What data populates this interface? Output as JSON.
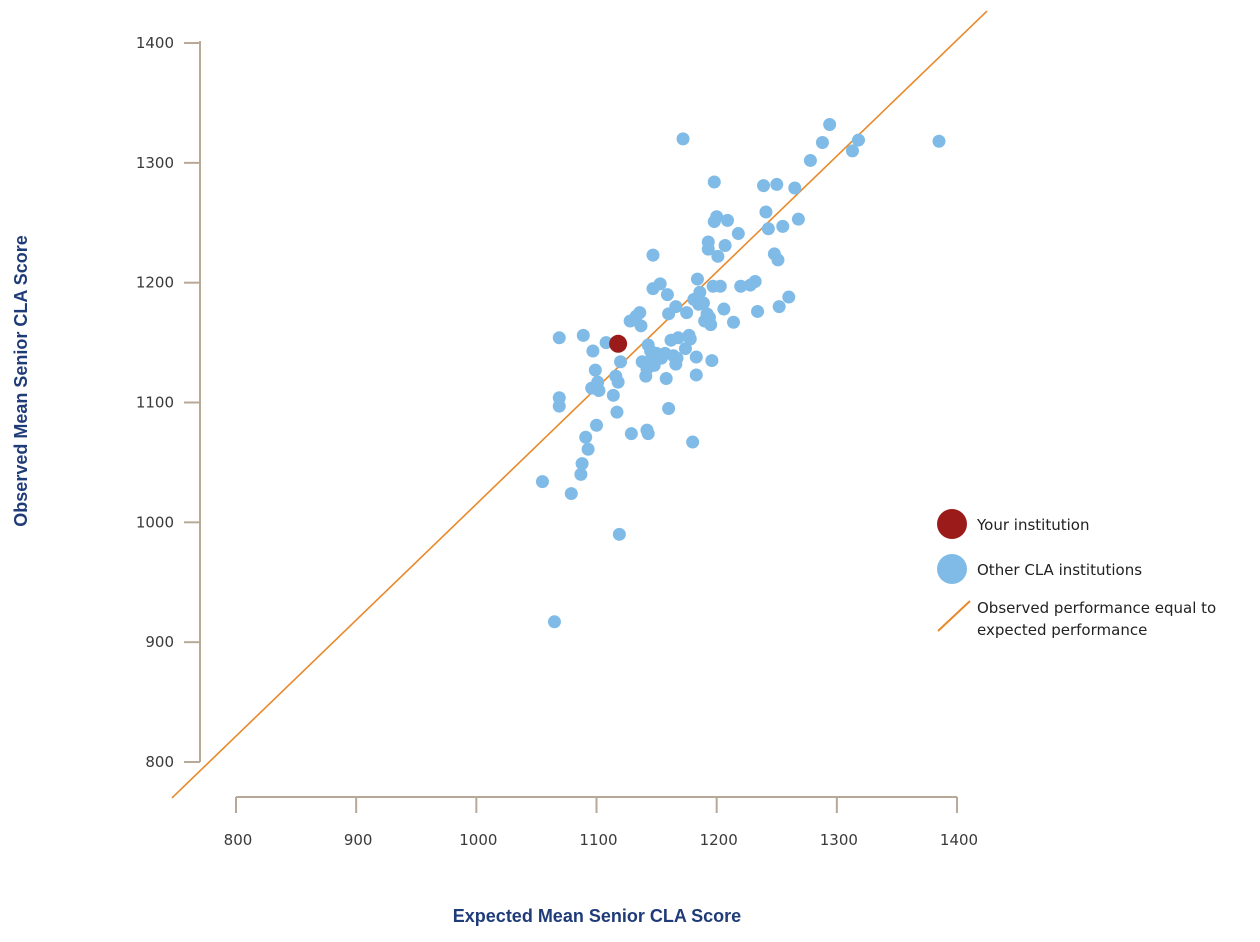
{
  "chart_data": {
    "type": "scatter",
    "xlabel": "Expected Mean Senior CLA Score",
    "ylabel": "Observed Mean Senior CLA Score",
    "xlim": [
      800,
      1400
    ],
    "ylim": [
      800,
      1400
    ],
    "x_ticks": [
      800,
      900,
      1000,
      1100,
      1200,
      1300,
      1400
    ],
    "y_ticks": [
      800,
      900,
      1000,
      1100,
      1200,
      1300,
      1400
    ],
    "grid": false,
    "legend_position": "right",
    "colors": {
      "your": "#9b1b1b",
      "other": "#7fbbe6",
      "line": "#e8892a",
      "axis": "#b8a898"
    },
    "reference_line": {
      "name": "Observed performance equal to expected performance",
      "line1": "Observed performance equal to",
      "line2": "expected performance",
      "from": [
        770,
        770
      ],
      "to": [
        1400,
        1400
      ]
    },
    "series": [
      {
        "name": "Your institution",
        "points": [
          [
            1118,
            1149
          ]
        ]
      },
      {
        "name": "Other CLA institutions",
        "points": [
          [
            1055,
            1034
          ],
          [
            1065,
            917
          ],
          [
            1069,
            1154
          ],
          [
            1069,
            1104
          ],
          [
            1069,
            1097
          ],
          [
            1079,
            1024
          ],
          [
            1087,
            1040
          ],
          [
            1088,
            1049
          ],
          [
            1089,
            1156
          ],
          [
            1091,
            1071
          ],
          [
            1093,
            1061
          ],
          [
            1096,
            1112
          ],
          [
            1097,
            1143
          ],
          [
            1099,
            1127
          ],
          [
            1100,
            1081
          ],
          [
            1101,
            1117
          ],
          [
            1102,
            1110
          ],
          [
            1108,
            1150
          ],
          [
            1114,
            1106
          ],
          [
            1116,
            1122
          ],
          [
            1117,
            1092
          ],
          [
            1118,
            1117
          ],
          [
            1119,
            990
          ],
          [
            1120,
            1134
          ],
          [
            1128,
            1168
          ],
          [
            1129,
            1074
          ],
          [
            1133,
            1172
          ],
          [
            1136,
            1175
          ],
          [
            1137,
            1164
          ],
          [
            1138,
            1134
          ],
          [
            1141,
            1122
          ],
          [
            1142,
            1077
          ],
          [
            1142,
            1128
          ],
          [
            1143,
            1074
          ],
          [
            1143,
            1148
          ],
          [
            1145,
            1143
          ],
          [
            1146,
            1137
          ],
          [
            1147,
            1195
          ],
          [
            1147,
            1223
          ],
          [
            1148,
            1131
          ],
          [
            1150,
            1141
          ],
          [
            1153,
            1199
          ],
          [
            1154,
            1137
          ],
          [
            1157,
            1141
          ],
          [
            1158,
            1120
          ],
          [
            1159,
            1190
          ],
          [
            1160,
            1174
          ],
          [
            1160,
            1095
          ],
          [
            1162,
            1152
          ],
          [
            1164,
            1139
          ],
          [
            1166,
            1180
          ],
          [
            1166,
            1132
          ],
          [
            1167,
            1137
          ],
          [
            1168,
            1154
          ],
          [
            1172,
            1320
          ],
          [
            1174,
            1145
          ],
          [
            1175,
            1175
          ],
          [
            1177,
            1156
          ],
          [
            1178,
            1153
          ],
          [
            1180,
            1067
          ],
          [
            1181,
            1186
          ],
          [
            1183,
            1123
          ],
          [
            1183,
            1138
          ],
          [
            1184,
            1203
          ],
          [
            1185,
            1182
          ],
          [
            1186,
            1192
          ],
          [
            1189,
            1183
          ],
          [
            1190,
            1168
          ],
          [
            1192,
            1174
          ],
          [
            1193,
            1234
          ],
          [
            1193,
            1228
          ],
          [
            1194,
            1171
          ],
          [
            1195,
            1165
          ],
          [
            1196,
            1135
          ],
          [
            1197,
            1197
          ],
          [
            1198,
            1284
          ],
          [
            1198,
            1251
          ],
          [
            1200,
            1255
          ],
          [
            1201,
            1222
          ],
          [
            1203,
            1197
          ],
          [
            1206,
            1178
          ],
          [
            1207,
            1231
          ],
          [
            1209,
            1252
          ],
          [
            1214,
            1167
          ],
          [
            1218,
            1241
          ],
          [
            1220,
            1197
          ],
          [
            1228,
            1198
          ],
          [
            1232,
            1201
          ],
          [
            1234,
            1176
          ],
          [
            1239,
            1281
          ],
          [
            1241,
            1259
          ],
          [
            1243,
            1245
          ],
          [
            1248,
            1224
          ],
          [
            1250,
            1282
          ],
          [
            1251,
            1219
          ],
          [
            1252,
            1180
          ],
          [
            1255,
            1247
          ],
          [
            1260,
            1188
          ],
          [
            1265,
            1279
          ],
          [
            1268,
            1253
          ],
          [
            1278,
            1302
          ],
          [
            1288,
            1317
          ],
          [
            1294,
            1332
          ],
          [
            1313,
            1310
          ],
          [
            1318,
            1319
          ],
          [
            1385,
            1318
          ]
        ]
      }
    ]
  }
}
